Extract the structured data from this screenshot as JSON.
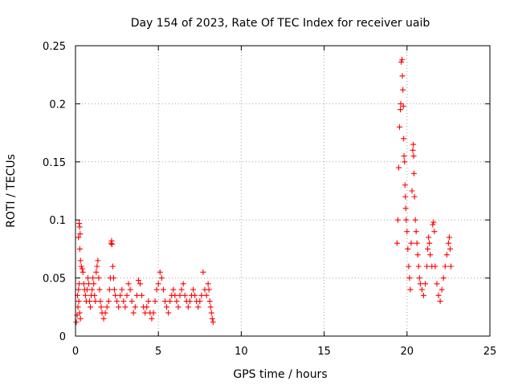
{
  "chart_data": {
    "type": "scatter",
    "title": "Day 154 of 2023, Rate Of TEC Index for receiver uaib",
    "xlabel": "GPS time / hours",
    "ylabel": "ROTI / TECUs",
    "xlim": [
      0,
      25
    ],
    "ylim": [
      0,
      0.25
    ],
    "xticks": [
      0,
      5,
      10,
      15,
      20,
      25
    ],
    "yticks": [
      0,
      0.05,
      0.1,
      0.15,
      0.2,
      0.25
    ],
    "xtick_labels": [
      "0",
      "5",
      "10",
      "15",
      "20",
      "25"
    ],
    "ytick_labels": [
      "0",
      "0.05",
      "0.1",
      "0.15",
      "0.2",
      "0.25"
    ],
    "grid": true,
    "legend": "none",
    "marker": "+",
    "color": "#ff0000",
    "series": [
      {
        "points": [
          [
            0.05,
            0.012
          ],
          [
            0.1,
            0.018
          ],
          [
            0.15,
            0.025
          ],
          [
            0.2,
            0.03
          ],
          [
            0.25,
            0.02
          ],
          [
            0.3,
            0.015
          ],
          [
            0.12,
            0.035
          ],
          [
            0.18,
            0.04
          ],
          [
            0.22,
            0.045
          ],
          [
            0.22,
            0.097
          ],
          [
            0.25,
            0.094
          ],
          [
            0.28,
            0.088
          ],
          [
            0.18,
            0.085
          ],
          [
            0.26,
            0.075
          ],
          [
            0.3,
            0.065
          ],
          [
            0.35,
            0.06
          ],
          [
            0.4,
            0.058
          ],
          [
            0.45,
            0.055
          ],
          [
            0.5,
            0.045
          ],
          [
            0.55,
            0.04
          ],
          [
            0.6,
            0.035
          ],
          [
            0.65,
            0.03
          ],
          [
            0.7,
            0.04
          ],
          [
            0.75,
            0.05
          ],
          [
            0.8,
            0.045
          ],
          [
            0.85,
            0.03
          ],
          [
            0.9,
            0.025
          ],
          [
            0.95,
            0.035
          ],
          [
            1.0,
            0.04
          ],
          [
            1.05,
            0.05
          ],
          [
            1.1,
            0.045
          ],
          [
            1.15,
            0.035
          ],
          [
            1.2,
            0.03
          ],
          [
            1.25,
            0.055
          ],
          [
            1.3,
            0.06
          ],
          [
            1.35,
            0.065
          ],
          [
            1.4,
            0.05
          ],
          [
            1.45,
            0.04
          ],
          [
            1.5,
            0.03
          ],
          [
            1.55,
            0.025
          ],
          [
            1.6,
            0.02
          ],
          [
            1.7,
            0.015
          ],
          [
            1.8,
            0.02
          ],
          [
            1.9,
            0.025
          ],
          [
            2.0,
            0.03
          ],
          [
            2.05,
            0.04
          ],
          [
            2.1,
            0.05
          ],
          [
            2.15,
            0.08
          ],
          [
            2.18,
            0.082
          ],
          [
            2.2,
            0.079
          ],
          [
            2.25,
            0.06
          ],
          [
            2.3,
            0.05
          ],
          [
            2.35,
            0.04
          ],
          [
            2.4,
            0.035
          ],
          [
            2.5,
            0.03
          ],
          [
            2.6,
            0.025
          ],
          [
            2.7,
            0.035
          ],
          [
            2.8,
            0.04
          ],
          [
            2.9,
            0.03
          ],
          [
            3.0,
            0.025
          ],
          [
            3.1,
            0.035
          ],
          [
            3.2,
            0.045
          ],
          [
            3.3,
            0.04
          ],
          [
            3.4,
            0.03
          ],
          [
            3.5,
            0.02
          ],
          [
            3.6,
            0.025
          ],
          [
            3.7,
            0.035
          ],
          [
            3.8,
            0.048
          ],
          [
            3.9,
            0.045
          ],
          [
            4.0,
            0.035
          ],
          [
            4.1,
            0.025
          ],
          [
            4.2,
            0.02
          ],
          [
            4.3,
            0.025
          ],
          [
            4.4,
            0.03
          ],
          [
            4.5,
            0.02
          ],
          [
            4.6,
            0.015
          ],
          [
            4.7,
            0.02
          ],
          [
            4.8,
            0.03
          ],
          [
            4.9,
            0.04
          ],
          [
            5.0,
            0.045
          ],
          [
            5.1,
            0.055
          ],
          [
            5.2,
            0.05
          ],
          [
            5.3,
            0.04
          ],
          [
            5.4,
            0.03
          ],
          [
            5.5,
            0.025
          ],
          [
            5.6,
            0.02
          ],
          [
            5.7,
            0.03
          ],
          [
            5.8,
            0.035
          ],
          [
            5.9,
            0.04
          ],
          [
            6.0,
            0.035
          ],
          [
            6.1,
            0.03
          ],
          [
            6.2,
            0.025
          ],
          [
            6.3,
            0.035
          ],
          [
            6.4,
            0.04
          ],
          [
            6.5,
            0.045
          ],
          [
            6.6,
            0.035
          ],
          [
            6.7,
            0.03
          ],
          [
            6.8,
            0.025
          ],
          [
            6.9,
            0.03
          ],
          [
            7.0,
            0.035
          ],
          [
            7.1,
            0.04
          ],
          [
            7.2,
            0.035
          ],
          [
            7.3,
            0.03
          ],
          [
            7.4,
            0.025
          ],
          [
            7.5,
            0.03
          ],
          [
            7.6,
            0.035
          ],
          [
            7.7,
            0.055
          ],
          [
            7.8,
            0.04
          ],
          [
            7.9,
            0.035
          ],
          [
            8.0,
            0.045
          ],
          [
            8.05,
            0.04
          ],
          [
            8.1,
            0.03
          ],
          [
            8.15,
            0.025
          ],
          [
            8.2,
            0.02
          ],
          [
            8.25,
            0.015
          ],
          [
            8.3,
            0.012
          ]
        ]
      },
      {
        "points": [
          [
            19.4,
            0.08
          ],
          [
            19.45,
            0.1
          ],
          [
            19.5,
            0.145
          ],
          [
            19.55,
            0.18
          ],
          [
            19.6,
            0.195
          ],
          [
            19.62,
            0.2
          ],
          [
            19.65,
            0.236
          ],
          [
            19.7,
            0.238
          ],
          [
            19.72,
            0.224
          ],
          [
            19.75,
            0.212
          ],
          [
            19.78,
            0.198
          ],
          [
            19.8,
            0.17
          ],
          [
            19.82,
            0.155
          ],
          [
            19.85,
            0.15
          ],
          [
            19.88,
            0.13
          ],
          [
            19.9,
            0.12
          ],
          [
            19.92,
            0.11
          ],
          [
            19.95,
            0.1
          ],
          [
            20.0,
            0.09
          ],
          [
            20.05,
            0.075
          ],
          [
            20.1,
            0.06
          ],
          [
            20.15,
            0.05
          ],
          [
            20.2,
            0.04
          ],
          [
            20.25,
            0.08
          ],
          [
            20.3,
            0.125
          ],
          [
            20.35,
            0.16
          ],
          [
            20.38,
            0.165
          ],
          [
            20.4,
            0.155
          ],
          [
            20.42,
            0.14
          ],
          [
            20.45,
            0.12
          ],
          [
            20.5,
            0.1
          ],
          [
            20.55,
            0.09
          ],
          [
            20.6,
            0.08
          ],
          [
            20.65,
            0.07
          ],
          [
            20.7,
            0.06
          ],
          [
            20.75,
            0.05
          ],
          [
            20.8,
            0.045
          ],
          [
            20.9,
            0.04
          ],
          [
            21.0,
            0.035
          ],
          [
            21.1,
            0.045
          ],
          [
            21.2,
            0.06
          ],
          [
            21.25,
            0.075
          ],
          [
            21.3,
            0.085
          ],
          [
            21.35,
            0.08
          ],
          [
            21.4,
            0.07
          ],
          [
            21.5,
            0.06
          ],
          [
            21.55,
            0.096
          ],
          [
            21.6,
            0.098
          ],
          [
            21.65,
            0.09
          ],
          [
            21.7,
            0.06
          ],
          [
            21.8,
            0.045
          ],
          [
            21.9,
            0.035
          ],
          [
            22.0,
            0.03
          ],
          [
            22.1,
            0.04
          ],
          [
            22.2,
            0.05
          ],
          [
            22.3,
            0.06
          ],
          [
            22.4,
            0.07
          ],
          [
            22.5,
            0.08
          ],
          [
            22.55,
            0.085
          ],
          [
            22.6,
            0.075
          ],
          [
            22.65,
            0.06
          ]
        ]
      }
    ]
  }
}
